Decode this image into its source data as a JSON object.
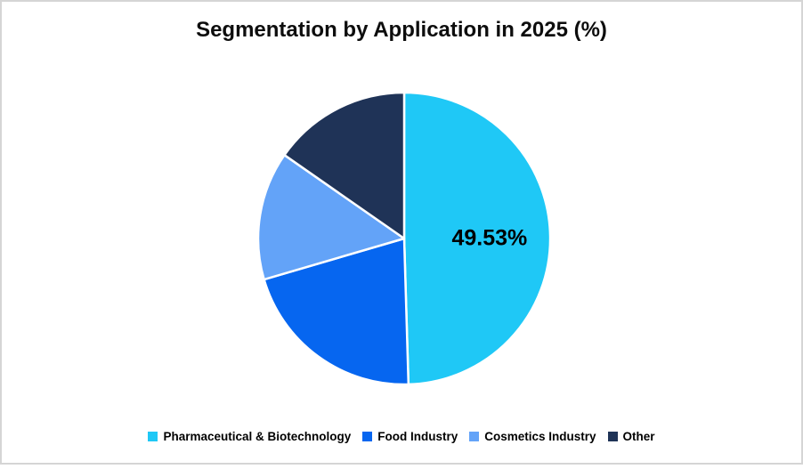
{
  "frame": {
    "background": "#FFFFFF",
    "border_color": "#D5D5D5"
  },
  "chart_data": {
    "type": "pie",
    "title": "Segmentation by Application in 2025 (%)",
    "title_color": "#0D0D0D",
    "legend_position": "bottom",
    "start_angle_deg": 0,
    "direction": "clockwise",
    "slice_border_color": "#FFFFFF",
    "data_label_color": "#000000",
    "slices": [
      {
        "name": "Pharmaceutical & Biotechnology",
        "value": 49.53,
        "color": "#1FC8F6",
        "label": "49.53%"
      },
      {
        "name": "Food Industry",
        "value": 20.94,
        "color": "#0666F0"
      },
      {
        "name": "Cosmetics Industry",
        "value": 14.22,
        "color": "#63A3F8"
      },
      {
        "name": "Other",
        "value": 15.31,
        "color": "#1F3357"
      }
    ]
  }
}
